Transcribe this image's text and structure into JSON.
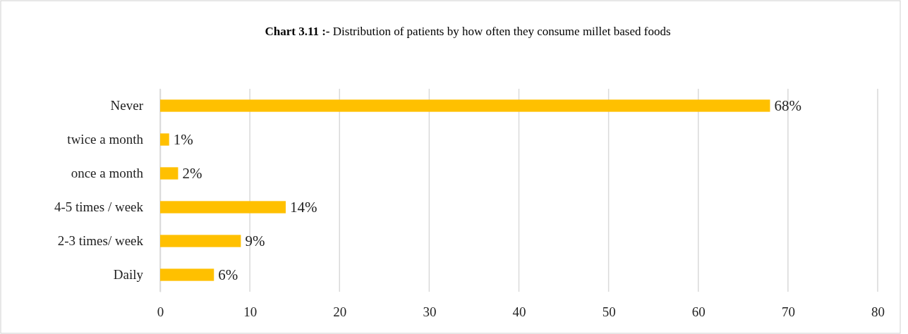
{
  "chart_data": {
    "type": "bar",
    "orientation": "horizontal",
    "title": "Chart 3.11 :- Distribution of patients by how often they consume millet based foods",
    "categories": [
      "Never",
      "twice a month",
      "once a month",
      "4-5 times / week",
      "2-3 times/ week",
      "Daily"
    ],
    "values": [
      68,
      1,
      2,
      14,
      9,
      6
    ],
    "value_labels": [
      "68%",
      "1%",
      "2%",
      "14%",
      "9%",
      "6%"
    ],
    "color": "#ffc000",
    "xlim": [
      0,
      80
    ],
    "xticks": [
      0,
      10,
      20,
      30,
      40,
      50,
      60,
      70,
      80
    ],
    "grid": "x"
  }
}
